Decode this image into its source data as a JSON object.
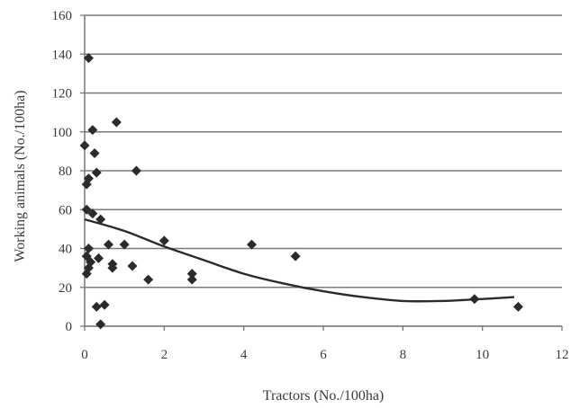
{
  "chart_data": {
    "type": "scatter",
    "title": "",
    "xlabel": "Tractors (No./100ha)",
    "ylabel": "Working animals (No./100ha)",
    "xlim": [
      0,
      12
    ],
    "ylim": [
      0,
      160
    ],
    "xticks": [
      0,
      2,
      4,
      6,
      8,
      10,
      12
    ],
    "yticks": [
      0,
      20,
      40,
      60,
      80,
      100,
      120,
      140,
      160
    ],
    "grid": "horizontal",
    "legend": "none",
    "marker": "diamond",
    "colors": {
      "points": "#2b2b2b",
      "trend": "#2b2b2b",
      "grid": "#7a7a7a",
      "axis": "#6e6e6e"
    },
    "series": [
      {
        "points": [
          [
            0.1,
            138
          ],
          [
            0.0,
            93
          ],
          [
            0.2,
            101
          ],
          [
            0.8,
            105
          ],
          [
            0.25,
            89
          ],
          [
            0.3,
            79
          ],
          [
            1.3,
            80
          ],
          [
            0.1,
            76
          ],
          [
            0.05,
            73
          ],
          [
            0.05,
            60
          ],
          [
            0.2,
            58
          ],
          [
            0.4,
            55
          ],
          [
            0.1,
            40
          ],
          [
            0.6,
            42
          ],
          [
            1.0,
            42
          ],
          [
            0.05,
            36
          ],
          [
            0.1,
            30
          ],
          [
            0.15,
            33
          ],
          [
            0.35,
            35
          ],
          [
            0.7,
            32
          ],
          [
            0.7,
            30
          ],
          [
            0.05,
            27
          ],
          [
            1.2,
            31
          ],
          [
            1.6,
            24
          ],
          [
            2.0,
            44
          ],
          [
            2.7,
            27
          ],
          [
            2.7,
            24
          ],
          [
            4.2,
            42
          ],
          [
            5.3,
            36
          ],
          [
            0.3,
            10
          ],
          [
            0.5,
            11
          ],
          [
            0.4,
            1
          ],
          [
            9.8,
            14
          ],
          [
            10.9,
            10
          ]
        ]
      }
    ],
    "trendline": {
      "type": "polynomial",
      "points": [
        [
          0,
          55
        ],
        [
          1,
          49
        ],
        [
          2,
          41
        ],
        [
          3,
          34
        ],
        [
          4,
          27
        ],
        [
          5,
          22
        ],
        [
          6,
          18
        ],
        [
          7,
          15
        ],
        [
          8,
          13
        ],
        [
          9,
          13
        ],
        [
          10,
          14
        ],
        [
          10.8,
          15
        ]
      ]
    }
  }
}
